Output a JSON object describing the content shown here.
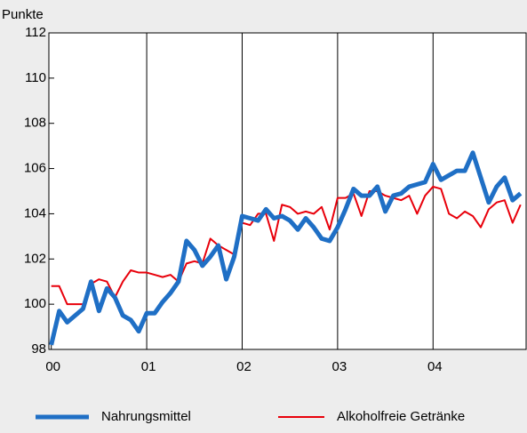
{
  "chart_data": {
    "type": "line",
    "y_label": "Punkte",
    "x": [
      0,
      1,
      2,
      3,
      4,
      5,
      6,
      7,
      8,
      9,
      10,
      11,
      12,
      13,
      14,
      15,
      16,
      17,
      18,
      19,
      20,
      21,
      22,
      23,
      24,
      25,
      26,
      27,
      28,
      29,
      30,
      31,
      32,
      33,
      34,
      35,
      36,
      37,
      38,
      39,
      40,
      41,
      42,
      43,
      44,
      45,
      46,
      47,
      48,
      49,
      50,
      51,
      52,
      53,
      54,
      55,
      56,
      57,
      58,
      59
    ],
    "xlim": [
      -0.3,
      59.7
    ],
    "xticks": [
      {
        "value": 0,
        "label": "00"
      },
      {
        "value": 12,
        "label": "01"
      },
      {
        "value": 24,
        "label": "02"
      },
      {
        "value": 36,
        "label": "03"
      },
      {
        "value": 48,
        "label": "04"
      }
    ],
    "ylim": [
      98,
      112
    ],
    "yticks": [
      98,
      100,
      102,
      104,
      106,
      108,
      110,
      112
    ],
    "grid": "x",
    "legend": "bottom",
    "series": [
      {
        "name": "Nahrungsmittel",
        "color": "#1f6fc5",
        "width": 5,
        "values": [
          98.2,
          99.7,
          99.2,
          99.5,
          99.8,
          101.0,
          99.7,
          100.7,
          100.3,
          99.5,
          99.3,
          98.8,
          99.6,
          99.6,
          100.1,
          100.5,
          101.0,
          102.8,
          102.4,
          101.7,
          102.1,
          102.6,
          101.1,
          102.1,
          103.9,
          103.8,
          103.7,
          104.2,
          103.8,
          103.9,
          103.7,
          103.3,
          103.8,
          103.4,
          102.9,
          102.8,
          103.4,
          104.2,
          105.1,
          104.8,
          104.8,
          105.2,
          104.1,
          104.8,
          104.9,
          105.2,
          105.3,
          105.4,
          106.2,
          105.5,
          105.7,
          105.9,
          105.9,
          106.7,
          105.6,
          104.5,
          105.2,
          105.6,
          104.6,
          104.9
        ]
      },
      {
        "name": "Alkoholfreie Getränke",
        "color": "#e8000b",
        "width": 2,
        "values": [
          100.8,
          100.8,
          100.0,
          100.0,
          100.0,
          100.9,
          101.1,
          101.0,
          100.3,
          101.0,
          101.5,
          101.4,
          101.4,
          101.3,
          101.2,
          101.3,
          101.0,
          101.8,
          101.9,
          101.8,
          102.9,
          102.6,
          102.4,
          102.2,
          103.6,
          103.5,
          104.0,
          104.0,
          102.8,
          104.4,
          104.3,
          104.0,
          104.1,
          104.0,
          104.3,
          103.3,
          104.7,
          104.7,
          104.9,
          103.9,
          105.0,
          105.0,
          104.8,
          104.7,
          104.6,
          104.8,
          104.0,
          104.8,
          105.2,
          105.1,
          104.0,
          103.8,
          104.1,
          103.9,
          103.4,
          104.2,
          104.5,
          104.6,
          103.6,
          104.4
        ]
      }
    ]
  }
}
